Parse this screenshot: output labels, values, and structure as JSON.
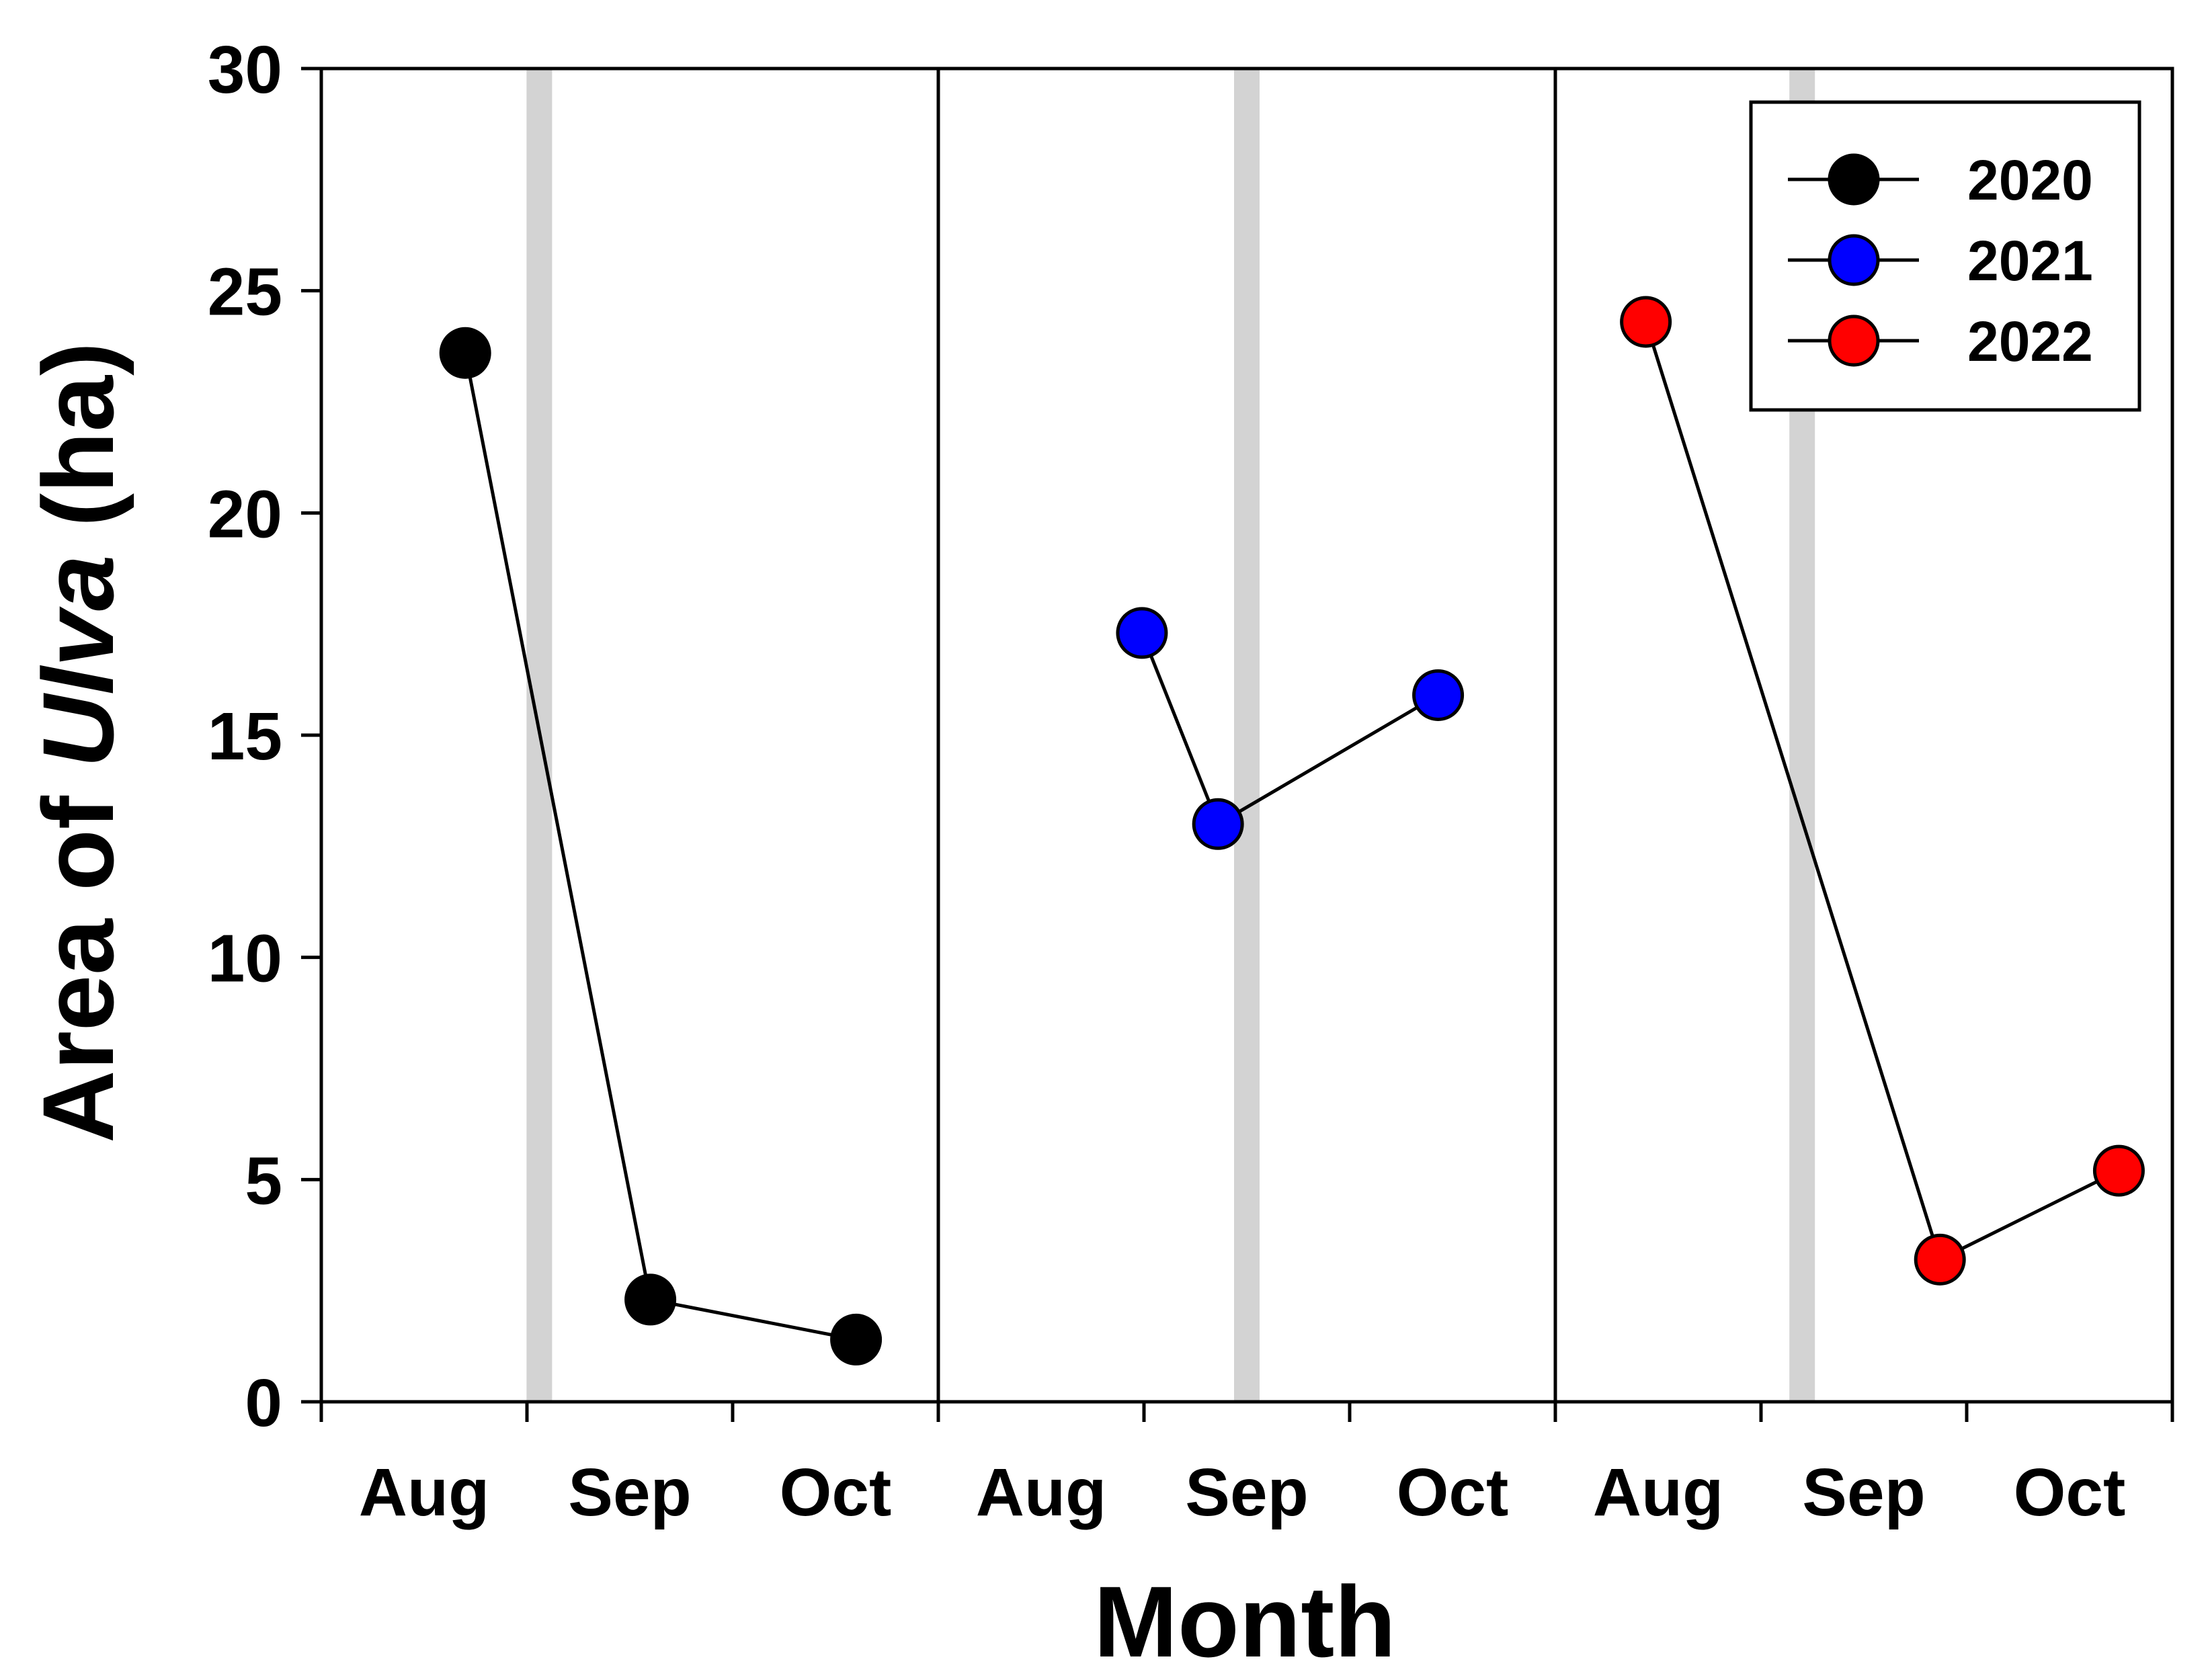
{
  "chart_data": {
    "type": "line",
    "ylabel_parts": [
      "Area of ",
      "Ulva",
      " (ha)"
    ],
    "xlabel": "Month",
    "ylim": [
      0,
      30
    ],
    "yticks": [
      "0",
      "5",
      "10",
      "15",
      "20",
      "25",
      "30"
    ],
    "panels": [
      {
        "series_name": "2020",
        "color": "#000000",
        "categories": [
          "Aug",
          "Sep",
          "Oct"
        ],
        "points": [
          {
            "month": 0.7,
            "value": 23.6
          },
          {
            "month": 1.6,
            "value": 2.3
          },
          {
            "month": 2.6,
            "value": 1.4
          }
        ],
        "gray_band_month": 1.06
      },
      {
        "series_name": "2021",
        "color": "#0000ff",
        "categories": [
          "Aug",
          "Sep",
          "Oct"
        ],
        "points": [
          {
            "month": 0.99,
            "value": 17.3
          },
          {
            "month": 1.36,
            "value": 13.0
          },
          {
            "month": 2.43,
            "value": 15.9
          }
        ],
        "gray_band_month": 1.5
      },
      {
        "series_name": "2022",
        "color": "#ff0000",
        "categories": [
          "Aug",
          "Sep",
          "Oct"
        ],
        "points": [
          {
            "month": 0.44,
            "value": 24.3
          },
          {
            "month": 1.87,
            "value": 3.2
          },
          {
            "month": 2.74,
            "value": 5.2
          }
        ],
        "gray_band_month": 1.2
      }
    ],
    "legend": {
      "position": "top-right",
      "entries": [
        {
          "label": "2020",
          "color": "#000000"
        },
        {
          "label": "2021",
          "color": "#0000ff"
        },
        {
          "label": "2022",
          "color": "#ff0000"
        }
      ]
    }
  }
}
